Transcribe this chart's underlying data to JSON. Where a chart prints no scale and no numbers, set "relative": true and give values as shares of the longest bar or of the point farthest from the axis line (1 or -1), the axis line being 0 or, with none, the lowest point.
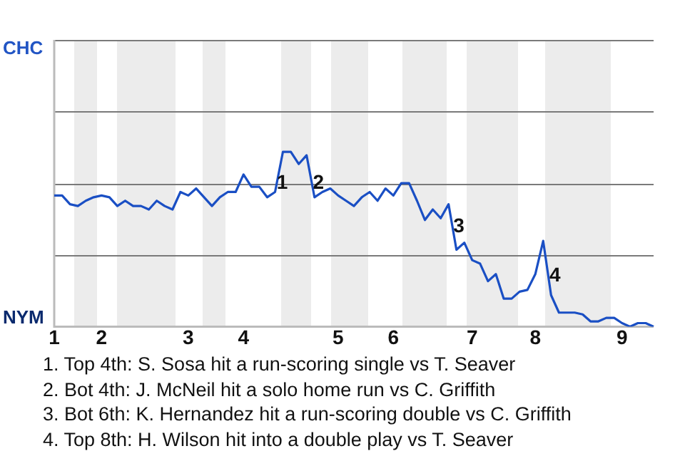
{
  "chart_data": {
    "type": "line",
    "relative": true,
    "categories": [
      "1",
      null,
      null,
      null,
      null,
      null,
      "2",
      null,
      null,
      null,
      null,
      null,
      null,
      null,
      null,
      null,
      null,
      "3",
      null,
      null,
      null,
      null,
      null,
      null,
      "4",
      null,
      null,
      null,
      null,
      null,
      null,
      null,
      null,
      null,
      null,
      null,
      "5",
      null,
      null,
      null,
      null,
      null,
      null,
      "6",
      null,
      null,
      null,
      null,
      null,
      null,
      null,
      null,
      null,
      "7",
      null,
      null,
      null,
      null,
      null,
      null,
      null,
      "8",
      null,
      null,
      null,
      null,
      null,
      null,
      null,
      null,
      null,
      null,
      "9",
      null,
      null,
      null,
      null
    ],
    "series": [
      {
        "color": "#1a4fc4",
        "values": [
          0.75,
          0.75,
          0.7,
          0.69,
          0.72,
          0.74,
          0.75,
          0.74,
          0.69,
          0.72,
          0.69,
          0.69,
          0.67,
          0.72,
          0.69,
          0.67,
          0.77,
          0.75,
          0.79,
          0.74,
          0.69,
          0.74,
          0.77,
          0.77,
          0.87,
          0.8,
          0.8,
          0.74,
          0.77,
          1,
          1,
          0.93,
          0.98,
          0.74,
          0.77,
          0.79,
          0.75,
          0.72,
          0.69,
          0.74,
          0.77,
          0.72,
          0.79,
          0.75,
          0.82,
          0.82,
          0.72,
          0.61,
          0.67,
          0.62,
          0.7,
          0.44,
          0.48,
          0.38,
          0.36,
          0.26,
          0.3,
          0.16,
          0.16,
          0.2,
          0.21,
          0.3,
          0.49,
          0.18,
          0.08,
          0.08,
          0.08,
          0.07,
          0.03,
          0.03,
          0.05,
          0.05,
          0.02,
          0,
          0.02,
          0.02,
          0
        ]
      }
    ],
    "ref_lines": [
      {
        "axis": "y",
        "value": 0.41,
        "color": "#7a7a7a"
      },
      {
        "axis": "y",
        "value": 0.82,
        "color": "#7a7a7a"
      },
      {
        "axis": "y",
        "value": 1.23,
        "color": "#7a7a7a"
      },
      {
        "axis": "y",
        "value": 1.64,
        "color": "#7a7a7a"
      }
    ],
    "tick_labels": "x",
    "marker": "none",
    "line_style": "solid",
    "annotations": [
      "CHC",
      "NYM",
      {
        "text": "1",
        "y": 0.82
      },
      {
        "text": "2",
        "y": 0.82
      },
      {
        "text": "3",
        "y": 0.57
      },
      {
        "text": "4",
        "y": 0.29
      },
      "1. Top 4th: S. Sosa hit a run-scoring single vs T. Seaver",
      "2. Bot 4th: J. McNeil hit a solo home run vs C. Griffith",
      "3. Bot 6th: K. Hernandez hit a run-scoring double vs C. Griffith",
      "4. Top 8th: H. Wilson hit into a double play vs T. Seaver"
    ]
  }
}
